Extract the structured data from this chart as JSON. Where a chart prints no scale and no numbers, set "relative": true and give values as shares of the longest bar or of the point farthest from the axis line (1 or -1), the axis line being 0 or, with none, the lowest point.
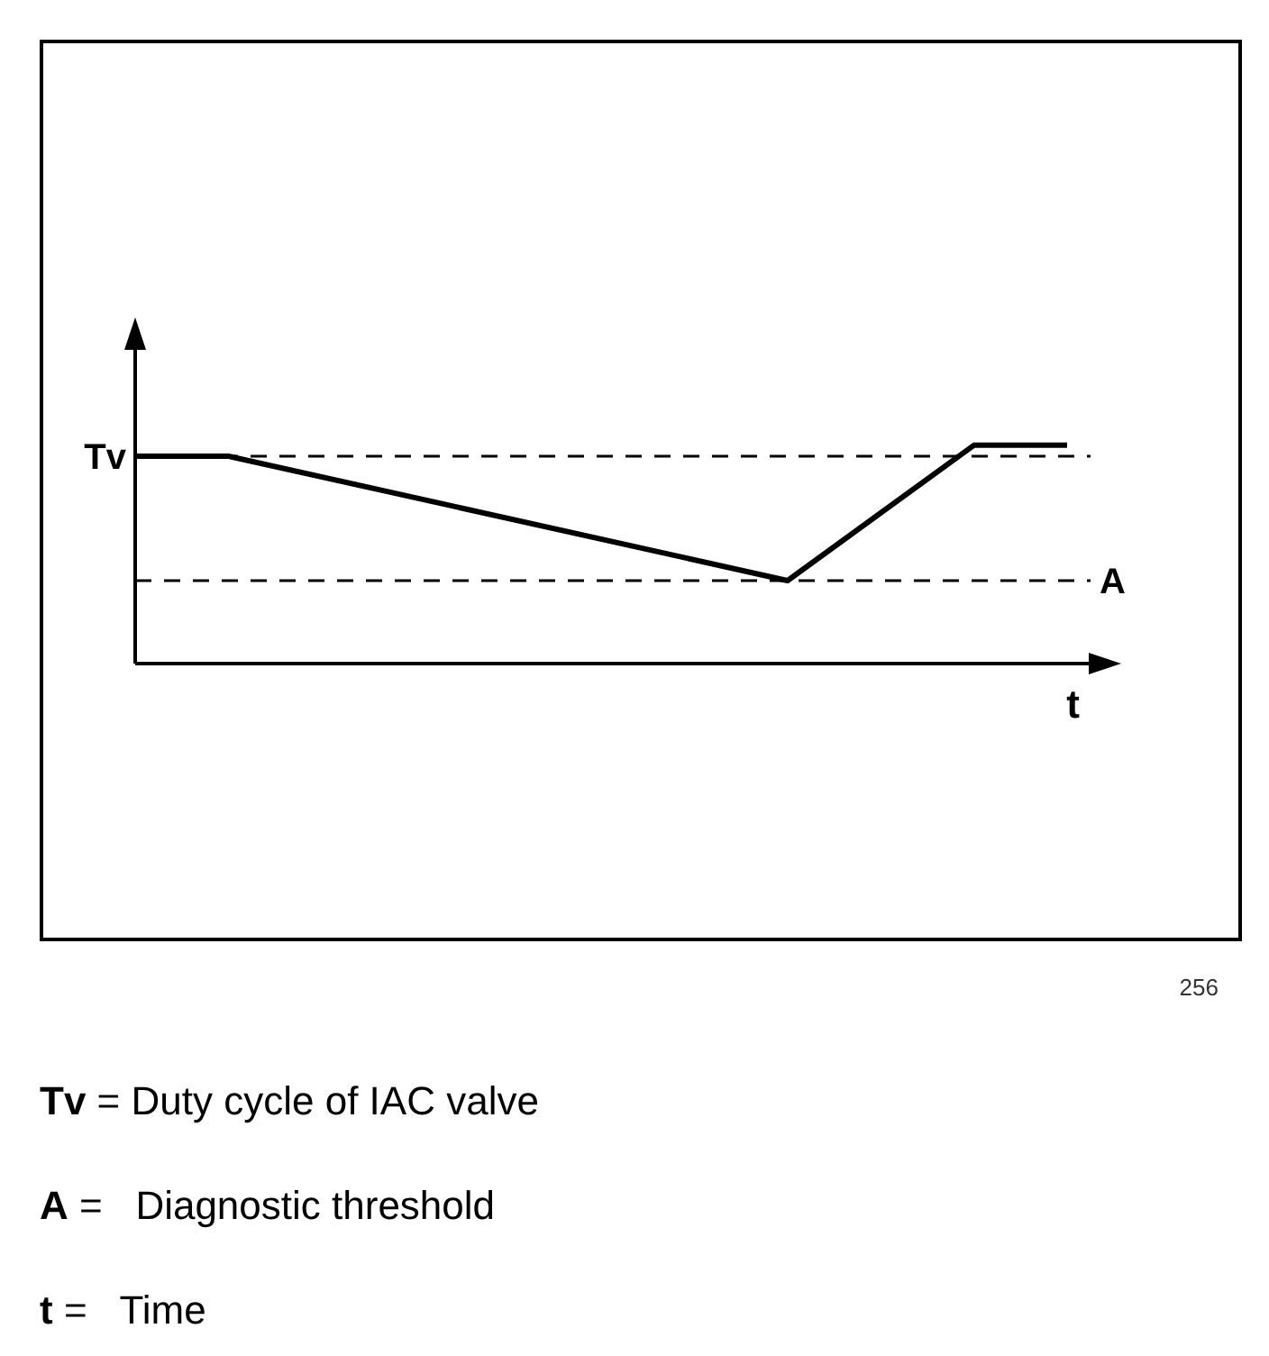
{
  "chart_data": {
    "type": "line",
    "relative": true,
    "xlabel": "t",
    "categories": [
      null,
      null,
      null,
      null,
      null,
      null,
      null,
      null,
      null,
      null,
      null
    ],
    "series": [
      {
        "color": "#000000",
        "values": [
          0.95,
          0.95,
          null,
          null,
          null,
          null,
          null,
          0.38,
          null,
          1,
          1
        ]
      }
    ],
    "ref_lines": [
      {
        "axis": "y",
        "value": 0.95,
        "label": "Tv",
        "line_style": "dashed",
        "color": "#000000"
      },
      {
        "axis": "y",
        "value": 0.38,
        "label": "A",
        "line_style": "dashed",
        "color": "#000000"
      }
    ],
    "marker": "none",
    "grid": false,
    "legend": false,
    "annotations": [
      "256",
      "Tv = Duty cycle of IAC valve",
      "A =   Diagnostic threshold",
      "t =   Time"
    ]
  }
}
